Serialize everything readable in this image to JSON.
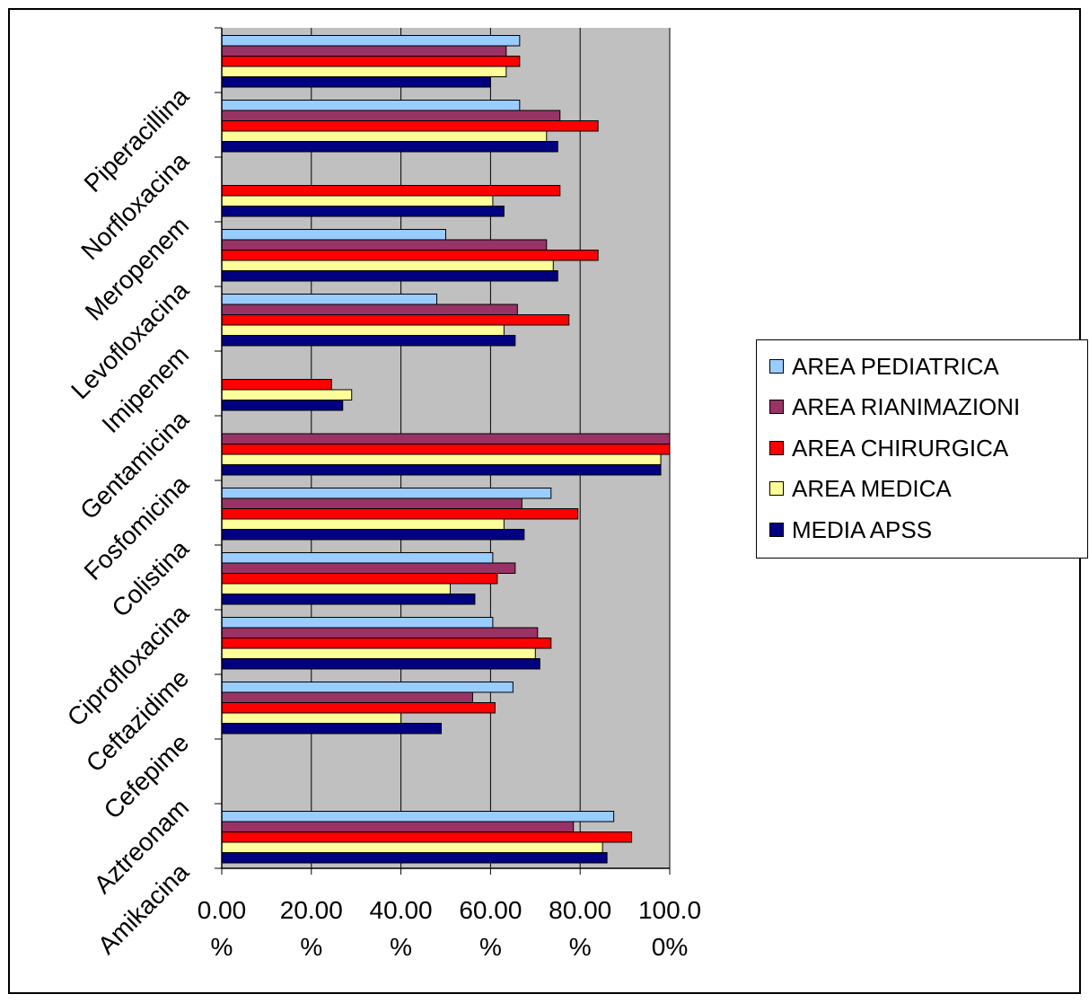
{
  "chart_data": {
    "type": "bar",
    "orientation": "horizontal",
    "title": "",
    "xlabel": "",
    "ylabel": "",
    "xlim": [
      0,
      1
    ],
    "x_tick_labels": [
      [
        "0.00",
        "%"
      ],
      [
        "20.00",
        "%"
      ],
      [
        "40.00",
        "%"
      ],
      [
        "60.00",
        "%"
      ],
      [
        "80.00",
        "%"
      ],
      [
        "100.0",
        "0%"
      ]
    ],
    "categories": [
      "Amikacina",
      "Aztreonam",
      "Cefepime",
      "Ceftazidime",
      "Ciprofloxacina",
      "Colistina",
      "Fosfomicina",
      "Gentamicina",
      "Imipenem",
      "Levofloxacina",
      "Meropenem",
      "Norfloxacina",
      "Piperacillina"
    ],
    "series": [
      {
        "name": "AREA PEDIATRICA",
        "color": "#99ccff",
        "values": [
          0.875,
          null,
          0.65,
          0.605,
          0.605,
          0.735,
          null,
          null,
          0.48,
          0.5,
          null,
          0.665,
          0.665
        ]
      },
      {
        "name": "AREA RIANIMAZIONI",
        "color": "#993366",
        "values": [
          0.785,
          null,
          0.56,
          0.705,
          0.655,
          0.67,
          1.0,
          null,
          0.66,
          0.725,
          null,
          0.755,
          0.635
        ]
      },
      {
        "name": "AREA CHIRURGICA",
        "color": "#ff0000",
        "values": [
          0.915,
          null,
          0.61,
          0.735,
          0.615,
          0.795,
          1.0,
          0.245,
          0.775,
          0.84,
          0.755,
          0.84,
          0.665
        ]
      },
      {
        "name": "AREA MEDICA",
        "color": "#ffff99",
        "values": [
          0.85,
          null,
          0.4,
          0.7,
          0.51,
          0.63,
          0.98,
          0.29,
          0.63,
          0.74,
          0.605,
          0.725,
          0.635
        ]
      },
      {
        "name": "MEDIA APSS",
        "color": "#000080",
        "values": [
          0.86,
          null,
          0.49,
          0.71,
          0.565,
          0.675,
          0.98,
          0.27,
          0.655,
          0.75,
          0.63,
          0.75,
          0.6
        ]
      }
    ],
    "legend_position": "right",
    "plot_background": "#c0c0c0",
    "grid": true
  }
}
